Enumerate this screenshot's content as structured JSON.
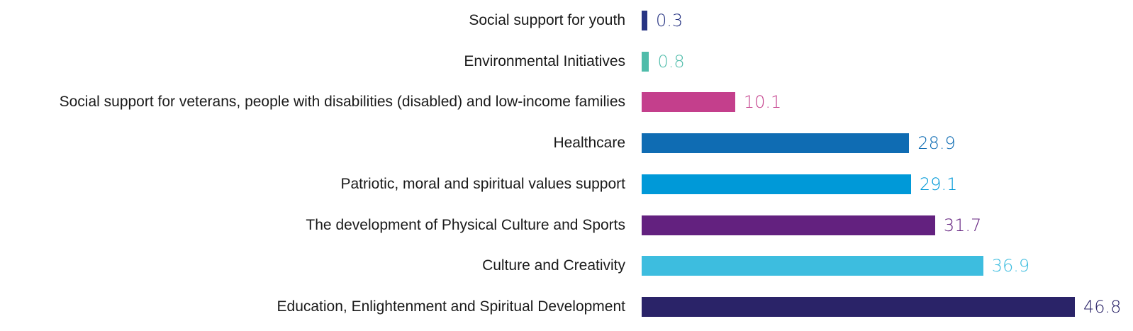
{
  "chart_data": {
    "type": "bar",
    "orientation": "horizontal",
    "categories": [
      "Social support for youth",
      "Environmental Initiatives",
      "Social support for veterans, people with disabilities (disabled) and low-income families",
      "Healthcare",
      "Patriotic, moral and spiritual values support",
      "The development of Physical Culture and Sports",
      "Culture and Creativity",
      "Education, Enlightenment and Spiritual Development"
    ],
    "values": [
      0.3,
      0.8,
      10.1,
      28.9,
      29.1,
      31.7,
      36.9,
      46.8
    ],
    "value_labels": [
      "0.3",
      "0.8",
      "10.1",
      "28.9",
      "29.1",
      "31.7",
      "36.9",
      "46.8"
    ],
    "colors": [
      "#283583",
      "#4fbcaa",
      "#c43f8c",
      "#0f6cb3",
      "#0099d8",
      "#63217f",
      "#3dbddf",
      "#2a2368"
    ],
    "xlim": [
      0,
      46.8
    ],
    "grid": false
  }
}
